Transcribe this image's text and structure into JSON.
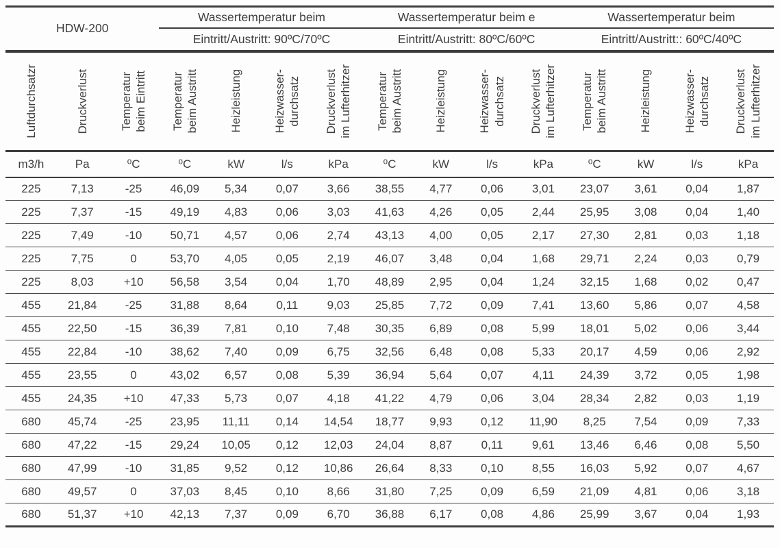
{
  "page": {
    "background": "#fdfdfd",
    "text_color": "#3e3e3e",
    "line_color": "#3d3d3d"
  },
  "table": {
    "model": "HDW-200",
    "groups": [
      {
        "title": "Wassertemperatur beim",
        "subtitle": "Eintritt/Austritt: 90ºC/70ºC"
      },
      {
        "title": "Wassertemperatur beim e",
        "subtitle": "Eintritt/Austritt: 80ºC/60ºC"
      },
      {
        "title": "Wassertemperatur beim",
        "subtitle": "Eintritt/Austritt:: 60ºC/40ºC"
      }
    ],
    "columns": [
      {
        "id": "luftdurchsatz",
        "lines": [
          "Luftdurchsatzr"
        ]
      },
      {
        "id": "druckverlust",
        "lines": [
          "Druckverlust"
        ]
      },
      {
        "id": "temperatur-eintritt",
        "lines": [
          "Temperatur",
          "beim Eintritt"
        ]
      },
      {
        "id": "temperatur-austritt-90",
        "lines": [
          "Temperatur",
          "beim Austritt"
        ]
      },
      {
        "id": "heizleistung-90",
        "lines": [
          "Heizleistung"
        ]
      },
      {
        "id": "heizwasserdurchsatz-90",
        "lines": [
          "Heizwasser-",
          "durchsatz"
        ]
      },
      {
        "id": "druckverlust-lufterhitzer-90",
        "lines": [
          "Druckverlust",
          "im Lufterhitzer"
        ]
      },
      {
        "id": "temperatur-austritt-80",
        "lines": [
          "Temperatur",
          "beim Austritt"
        ]
      },
      {
        "id": "heizleistung-80",
        "lines": [
          "Heizleistung"
        ]
      },
      {
        "id": "heizwasserdurchsatz-80",
        "lines": [
          "Heizwasser-",
          "durchsatz"
        ]
      },
      {
        "id": "druckverlust-lufterhitzer-80",
        "lines": [
          "Druckverlust",
          "im Lufterhitzer"
        ]
      },
      {
        "id": "temperatur-austritt-60",
        "lines": [
          "Temperatur",
          "beim Austritt"
        ]
      },
      {
        "id": "heizleistung-60",
        "lines": [
          "Heizleistung"
        ]
      },
      {
        "id": "heizwasserdurchsatz-60",
        "lines": [
          "Heizwasser-",
          "durchsatz"
        ]
      },
      {
        "id": "druckverlust-lufterhitzer-60",
        "lines": [
          "Druckverlust",
          "im Lufterhitzer"
        ]
      }
    ],
    "units": [
      "m3/h",
      "Pa",
      "⁰C",
      "⁰C",
      "kW",
      "l/s",
      "kPa",
      "⁰C",
      "kW",
      "l/s",
      "kPa",
      "⁰C",
      "kW",
      "l/s",
      "kPa"
    ],
    "rows": [
      [
        "225",
        "7,13",
        "-25",
        "46,09",
        "5,34",
        "0,07",
        "3,66",
        "38,55",
        "4,77",
        "0,06",
        "3,01",
        "23,07",
        "3,61",
        "0,04",
        "1,87"
      ],
      [
        "225",
        "7,37",
        "-15",
        "49,19",
        "4,83",
        "0,06",
        "3,03",
        "41,63",
        "4,26",
        "0,05",
        "2,44",
        "25,95",
        "3,08",
        "0,04",
        "1,40"
      ],
      [
        "225",
        "7,49",
        "-10",
        "50,71",
        "4,57",
        "0,06",
        "2,74",
        "43,13",
        "4,00",
        "0,05",
        "2,17",
        "27,30",
        "2,81",
        "0,03",
        "1,18"
      ],
      [
        "225",
        "7,75",
        "0",
        "53,70",
        "4,05",
        "0,05",
        "2,19",
        "46,07",
        "3,48",
        "0,04",
        "1,68",
        "29,71",
        "2,24",
        "0,03",
        "0,79"
      ],
      [
        "225",
        "8,03",
        "+10",
        "56,58",
        "3,54",
        "0,04",
        "1,70",
        "48,89",
        "2,95",
        "0,04",
        "1,24",
        "32,15",
        "1,68",
        "0,02",
        "0,47"
      ],
      [
        "455",
        "21,84",
        "-25",
        "31,88",
        "8,64",
        "0,11",
        "9,03",
        "25,85",
        "7,72",
        "0,09",
        "7,41",
        "13,60",
        "5,86",
        "0,07",
        "4,58"
      ],
      [
        "455",
        "22,50",
        "-15",
        "36,39",
        "7,81",
        "0,10",
        "7,48",
        "30,35",
        "6,89",
        "0,08",
        "5,99",
        "18,01",
        "5,02",
        "0,06",
        "3,44"
      ],
      [
        "455",
        "22,84",
        "-10",
        "38,62",
        "7,40",
        "0,09",
        "6,75",
        "32,56",
        "6,48",
        "0,08",
        "5,33",
        "20,17",
        "4,59",
        "0,06",
        "2,92"
      ],
      [
        "455",
        "23,55",
        "0",
        "43,02",
        "6,57",
        "0,08",
        "5,39",
        "36,94",
        "5,64",
        "0,07",
        "4,11",
        "24,39",
        "3,72",
        "0,05",
        "1,98"
      ],
      [
        "455",
        "24,35",
        "+10",
        "47,33",
        "5,73",
        "0,07",
        "4,18",
        "41,22",
        "4,79",
        "0,06",
        "3,04",
        "28,34",
        "2,82",
        "0,03",
        "1,19"
      ],
      [
        "680",
        "45,74",
        "-25",
        "23,95",
        "11,11",
        "0,14",
        "14,54",
        "18,77",
        "9,93",
        "0,12",
        "11,90",
        "8,25",
        "7,54",
        "0,09",
        "7,33"
      ],
      [
        "680",
        "47,22",
        "-15",
        "29,24",
        "10,05",
        "0,12",
        "12,03",
        "24,04",
        "8,87",
        "0,11",
        "9,61",
        "13,46",
        "6,46",
        "0,08",
        "5,50"
      ],
      [
        "680",
        "47,99",
        "-10",
        "31,85",
        "9,52",
        "0,12",
        "10,86",
        "26,64",
        "8,33",
        "0,10",
        "8,55",
        "16,03",
        "5,92",
        "0,07",
        "4,67"
      ],
      [
        "680",
        "49,57",
        "0",
        "37,03",
        "8,45",
        "0,10",
        "8,66",
        "31,80",
        "7,25",
        "0,09",
        "6,59",
        "21,09",
        "4,81",
        "0,06",
        "3,18"
      ],
      [
        "680",
        "51,37",
        "+10",
        "42,13",
        "7,37",
        "0,09",
        "6,70",
        "36,88",
        "6,17",
        "0,08",
        "4,86",
        "25,99",
        "3,67",
        "0,04",
        "1,93"
      ]
    ]
  }
}
